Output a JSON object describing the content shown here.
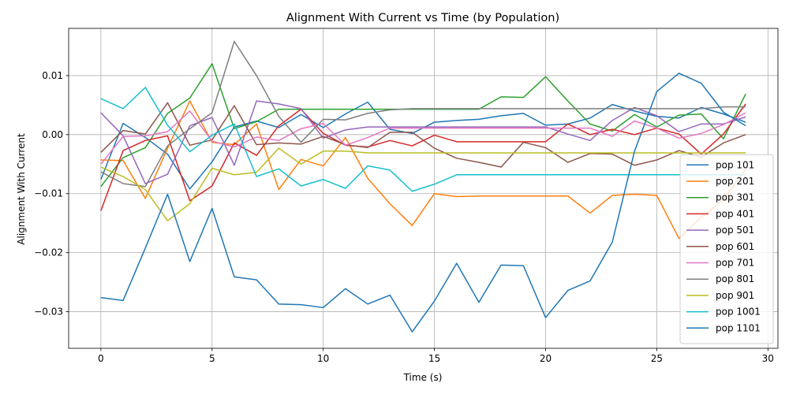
{
  "chart_data": {
    "type": "line",
    "title": "Alignment With Current vs Time (by Population)",
    "xlabel": "Time (s)",
    "ylabel": "Alignment With Current",
    "xlim": [
      -1.45,
      30.45
    ],
    "ylim": [
      -0.0362,
      0.018
    ],
    "xticks": [
      0,
      5,
      10,
      15,
      20,
      25,
      30
    ],
    "xtick_labels": [
      "0",
      "5",
      "10",
      "15",
      "20",
      "25",
      "30"
    ],
    "yticks": [
      -0.03,
      -0.02,
      -0.01,
      0.0,
      0.01
    ],
    "ytick_labels": [
      "−0.03",
      "−0.02",
      "−0.01",
      "0.00",
      "0.01"
    ],
    "grid": true,
    "legend_position": "lower-right",
    "x": [
      0,
      1,
      2,
      3,
      4,
      5,
      6,
      7,
      8,
      9,
      10,
      11,
      12,
      13,
      14,
      15,
      16,
      17,
      18,
      19,
      20,
      21,
      22,
      23,
      24,
      25,
      26,
      27,
      28,
      29
    ],
    "series": [
      {
        "name": "pop 101",
        "color": "#1f77b4",
        "values": [
          -0.0076,
          0.0019,
          -0.0005,
          -0.0033,
          -0.0092,
          -0.0046,
          0.0013,
          0.0023,
          0.0012,
          0.0034,
          0.0012,
          0.0035,
          0.0055,
          0.0009,
          0.0002,
          0.0021,
          0.0024,
          0.0026,
          0.0032,
          0.0036,
          0.0016,
          0.0018,
          0.0028,
          0.0051,
          0.004,
          0.0031,
          0.0028,
          0.0046,
          0.0035,
          0.0021
        ]
      },
      {
        "name": "pop 201",
        "color": "#ff7f0e",
        "values": [
          -0.0043,
          -0.0044,
          -0.0108,
          -0.0023,
          0.0057,
          -0.0013,
          -0.0017,
          0.0018,
          -0.0093,
          -0.0042,
          -0.0053,
          -0.0005,
          -0.0074,
          -0.0117,
          -0.0154,
          -0.01,
          -0.0105,
          -0.0104,
          -0.0104,
          -0.0104,
          -0.0104,
          -0.0104,
          -0.0133,
          -0.0103,
          -0.0101,
          -0.0103,
          -0.0176,
          -0.014,
          -0.011,
          -0.0058
        ]
      },
      {
        "name": "pop 301",
        "color": "#2ca02c",
        "values": [
          -0.0088,
          -0.0039,
          -0.0022,
          0.0036,
          0.0062,
          0.012,
          0.001,
          0.0022,
          0.0043,
          0.0043,
          0.0043,
          0.0043,
          0.0043,
          0.0043,
          0.0043,
          0.0043,
          0.0043,
          0.0043,
          0.0064,
          0.0063,
          0.0098,
          0.0057,
          0.0018,
          0.0006,
          0.0034,
          0.0013,
          0.0033,
          0.0035,
          -0.0007,
          0.0069
        ]
      },
      {
        "name": "pop 401",
        "color": "#d62728",
        "values": [
          -0.0129,
          -0.0027,
          -0.001,
          -0.0002,
          -0.0112,
          -0.0087,
          -0.0014,
          -0.0035,
          0.0015,
          0.0043,
          0.0002,
          -0.0018,
          -0.0021,
          -0.001,
          -0.0019,
          -0.0001,
          -0.0012,
          -0.0012,
          -0.0012,
          -0.0012,
          -0.0012,
          0.0018,
          0.0,
          0.0009,
          0.0,
          0.0011,
          0.0001,
          -0.0033,
          0.0001,
          0.0052
        ]
      },
      {
        "name": "pop 501",
        "color": "#9467bd",
        "values": [
          0.0037,
          -0.0002,
          -0.0083,
          -0.0067,
          0.0015,
          0.0029,
          -0.0052,
          0.0057,
          0.0052,
          0.0044,
          -0.0006,
          0.0008,
          0.0013,
          0.0013,
          0.0013,
          0.0013,
          0.0013,
          0.0013,
          0.0013,
          0.0013,
          0.0013,
          0.0001,
          -0.001,
          0.0024,
          0.0046,
          0.0032,
          0.0005,
          0.0018,
          0.0018,
          0.003
        ]
      },
      {
        "name": "pop 601",
        "color": "#8c564b",
        "values": [
          -0.003,
          0.0007,
          0.0001,
          0.0054,
          -0.0018,
          -0.0009,
          0.0049,
          -0.0017,
          -0.0014,
          -0.0016,
          -0.0003,
          -0.0017,
          -0.0022,
          0.0004,
          0.0004,
          -0.0023,
          -0.004,
          -0.0047,
          -0.0055,
          -0.0013,
          -0.0022,
          -0.0047,
          -0.0032,
          -0.0033,
          -0.0052,
          -0.0043,
          -0.0027,
          -0.0038,
          -0.0014,
          0.0
        ]
      },
      {
        "name": "pop 701",
        "color": "#e377c2",
        "values": [
          -0.005,
          -0.0003,
          -0.0002,
          0.0005,
          0.004,
          -0.0011,
          -0.0021,
          -0.0004,
          -0.001,
          0.001,
          0.0019,
          -0.0018,
          -0.0005,
          0.0011,
          0.0011,
          0.0011,
          0.0011,
          0.0011,
          0.0011,
          0.0011,
          0.0011,
          0.0011,
          0.0011,
          -0.0003,
          0.0023,
          0.0011,
          -0.0006,
          0.0002,
          0.0017,
          0.0037
        ]
      },
      {
        "name": "pop 801",
        "color": "#7f7f7f",
        "values": [
          -0.0063,
          -0.0083,
          -0.0088,
          -0.0019,
          0.001,
          0.0037,
          0.0158,
          0.01,
          0.0031,
          -0.0013,
          0.0026,
          0.0025,
          0.0036,
          0.0042,
          0.0044,
          0.0044,
          0.0044,
          0.0044,
          0.0044,
          0.0044,
          0.0044,
          0.0044,
          0.0044,
          0.0044,
          0.0044,
          0.0044,
          0.0044,
          0.0044,
          0.0047,
          0.0047
        ]
      },
      {
        "name": "pop 901",
        "color": "#bcbd22",
        "values": [
          -0.0055,
          -0.0071,
          -0.0093,
          -0.0146,
          -0.0117,
          -0.0057,
          -0.0068,
          -0.0064,
          -0.0023,
          -0.005,
          -0.0028,
          -0.0028,
          -0.0031,
          -0.0031,
          -0.0031,
          -0.0031,
          -0.0031,
          -0.0031,
          -0.0031,
          -0.0031,
          -0.0031,
          -0.0031,
          -0.0031,
          -0.0031,
          -0.0031,
          -0.0031,
          -0.0031,
          -0.0031,
          -0.0031,
          -0.0031
        ]
      },
      {
        "name": "pop 1001",
        "color": "#17becf",
        "values": [
          0.0061,
          0.0044,
          0.008,
          0.0016,
          -0.0029,
          -0.0001,
          0.0018,
          -0.0071,
          -0.0058,
          -0.0087,
          -0.0076,
          -0.0091,
          -0.0053,
          -0.006,
          -0.0096,
          -0.0084,
          -0.0068,
          -0.0068,
          -0.0068,
          -0.0068,
          -0.0068,
          -0.0068,
          -0.0068,
          -0.0068,
          -0.0068,
          -0.0068,
          -0.0068,
          -0.0068,
          -0.0068,
          -0.0068
        ]
      },
      {
        "name": "pop 1101",
        "color": "#1f77b4",
        "values": [
          -0.0276,
          -0.0281,
          -0.0192,
          -0.0101,
          -0.0215,
          -0.0125,
          -0.0241,
          -0.0246,
          -0.0287,
          -0.0288,
          -0.0293,
          -0.0261,
          -0.0287,
          -0.0272,
          -0.0334,
          -0.0282,
          -0.0218,
          -0.0284,
          -0.0221,
          -0.0222,
          -0.031,
          -0.0264,
          -0.0248,
          -0.0182,
          -0.0028,
          0.0073,
          0.0104,
          0.0087,
          0.0038,
          0.0015
        ]
      }
    ]
  }
}
